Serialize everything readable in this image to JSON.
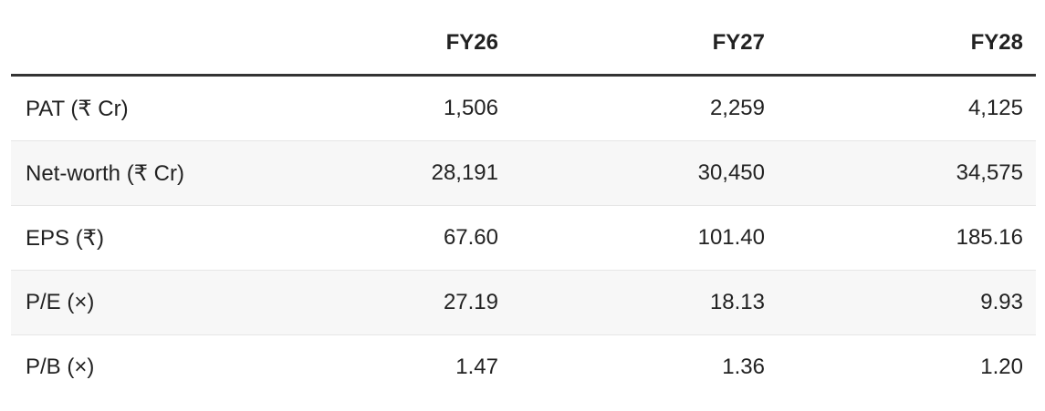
{
  "table": {
    "columns": [
      "FY26",
      "FY27",
      "FY28"
    ],
    "rows": [
      {
        "label": "PAT (₹ Cr)",
        "values": [
          "1,506",
          "2,259",
          "4,125"
        ]
      },
      {
        "label": "Net-worth (₹ Cr)",
        "values": [
          "28,191",
          "30,450",
          "34,575"
        ]
      },
      {
        "label": "EPS (₹)",
        "values": [
          "67.60",
          "101.40",
          "185.16"
        ]
      },
      {
        "label": "P/E (×)",
        "values": [
          "27.19",
          "18.13",
          "9.93"
        ]
      },
      {
        "label": "P/B (×)",
        "values": [
          "1.47",
          "1.36",
          "1.20"
        ]
      }
    ]
  }
}
